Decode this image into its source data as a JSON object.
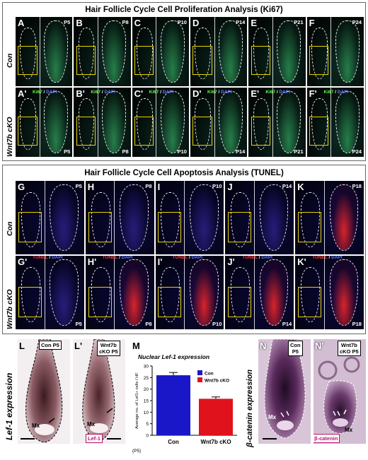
{
  "top": {
    "title": "Hair Follicle Cycle Cell Proliferation Analysis (Ki67)",
    "row_con": "Con",
    "row_cko": "Wnt7b cKO",
    "stain_g": "Ki67",
    "stain_sep": " / ",
    "stain_b": "DAPI",
    "con_letters": [
      "A",
      "B",
      "C",
      "D",
      "E",
      "F"
    ],
    "cko_letters": [
      "A'",
      "B'",
      "C'",
      "D'",
      "E'",
      "F'"
    ],
    "stages": [
      "P5",
      "P8",
      "P10",
      "P14",
      "P21",
      "P24"
    ]
  },
  "mid": {
    "title": "Hair Follicle Cycle Cell Apoptosis Analysis (TUNEL)",
    "row_con": "Con",
    "row_cko": "Wnt7b cKO",
    "stain_r": "TUNEL",
    "stain_sep": " / ",
    "stain_b": "DAPI",
    "con_letters": [
      "G",
      "H",
      "I",
      "J",
      "K"
    ],
    "cko_letters": [
      "G'",
      "H'",
      "I'",
      "J'",
      "K'"
    ],
    "stages": [
      "P5",
      "P8",
      "P10",
      "P14",
      "P18"
    ]
  },
  "bottom": {
    "lef_side_label": "Lef-1 expression",
    "L": "L",
    "L2": "L'",
    "L_tag": "Con P5",
    "L2_tag_1": "Wnt7b",
    "L2_tag_2": "cKO P5",
    "lef_stain": "Lef-1",
    "mx": "Mx",
    "N": "N",
    "N2": "N'",
    "N_tag_1": "Con",
    "N_tag_2": "P5",
    "N2_tag_1": "Wnt7b",
    "N2_tag_2": "cKO P5",
    "bcat_side_label": "β-catenin expression",
    "bcat_stain": "β-catenin"
  },
  "chart_data": {
    "type": "bar",
    "panel": "M",
    "title": "Nuclear Lef-1 expression",
    "categories": [
      "Con",
      "Wnt7b cKO"
    ],
    "values": [
      26,
      15.8
    ],
    "errors": [
      1.2,
      0.8
    ],
    "colors": [
      "#1a17c9",
      "#e0121b"
    ],
    "ylabel": "Average no. of Lef1+ cells / HF",
    "xlabel_note": "(P5)",
    "ylim": [
      0,
      30
    ],
    "yticks": [
      0,
      5,
      10,
      15,
      20,
      25,
      30
    ],
    "legend": [
      "Con",
      "Wnt7b cKO"
    ],
    "legend_position": "top-right"
  }
}
